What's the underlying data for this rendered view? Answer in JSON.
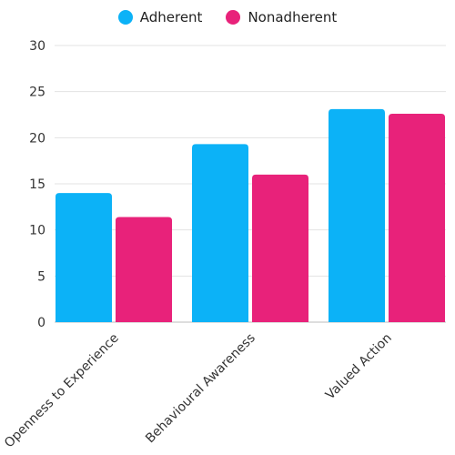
{
  "chart_data": {
    "type": "bar",
    "categories": [
      "Openness to Experience",
      "Behavioural Awareness",
      "Valued Action"
    ],
    "series": [
      {
        "name": "Adherent",
        "color": "#0cb2f7",
        "values": [
          14.0,
          19.3,
          23.1
        ]
      },
      {
        "name": "Nonadherent",
        "color": "#e8227a",
        "values": [
          11.4,
          16.0,
          22.6
        ]
      }
    ],
    "yticks": [
      0,
      5,
      10,
      15,
      20,
      25,
      30
    ],
    "ylim": [
      0,
      30
    ],
    "grid": true,
    "legend_position": "top-center"
  }
}
